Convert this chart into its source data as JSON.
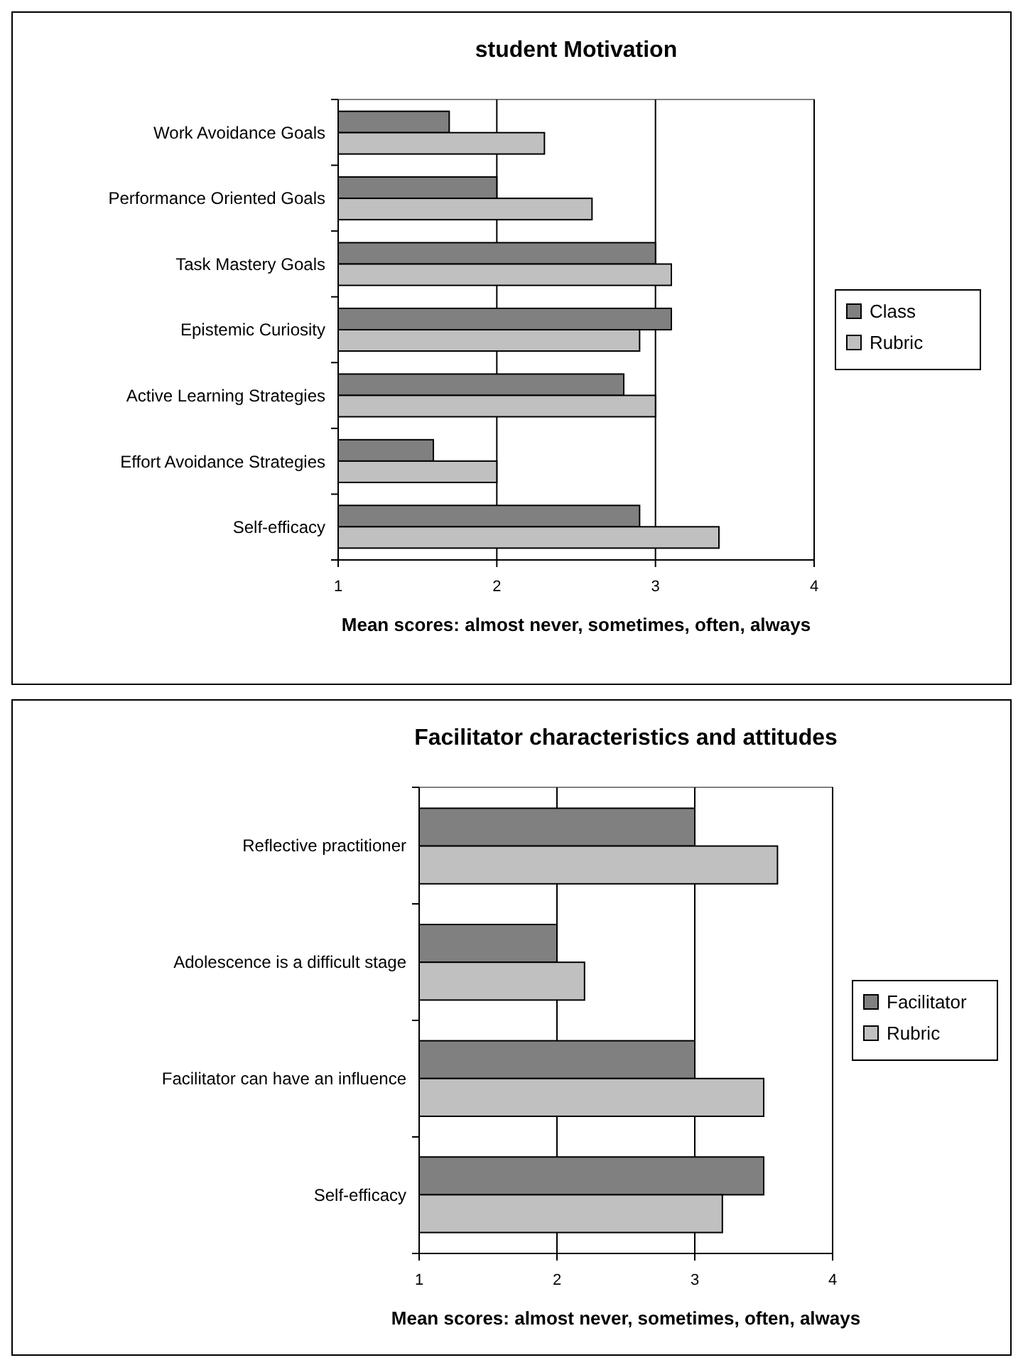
{
  "chart_data": [
    {
      "type": "bar",
      "orientation": "horizontal",
      "title": "student Motivation",
      "xlabel": "Mean scores: almost never, sometimes, often, always",
      "categories": [
        "Work Avoidance Goals",
        "Performance Oriented Goals",
        "Task Mastery Goals",
        "Epistemic Curiosity",
        "Active Learning Strategies",
        "Effort Avoidance Strategies",
        "Self-efficacy"
      ],
      "series": [
        {
          "name": "Class",
          "color": "#808080",
          "values": [
            1.7,
            2.0,
            3.0,
            3.1,
            2.8,
            1.6,
            2.9
          ]
        },
        {
          "name": "Rubric",
          "color": "#c0c0c0",
          "values": [
            2.3,
            2.6,
            3.1,
            2.9,
            3.0,
            2.0,
            3.4
          ]
        }
      ],
      "xlim": [
        1,
        4
      ],
      "xticks": [
        1,
        2,
        3,
        4
      ],
      "grid": "x",
      "legend": "right"
    },
    {
      "type": "bar",
      "orientation": "horizontal",
      "title": "Facilitator characteristics and attitudes",
      "xlabel": "Mean scores: almost never, sometimes, often, always",
      "categories": [
        "Reflective practitioner",
        "Adolescence is a difficult stage",
        "Facilitator can have an influence",
        "Self-efficacy"
      ],
      "series": [
        {
          "name": "Facilitator",
          "color": "#808080",
          "values": [
            3.0,
            2.0,
            3.0,
            3.5
          ]
        },
        {
          "name": "Rubric",
          "color": "#c0c0c0",
          "values": [
            3.6,
            2.2,
            3.5,
            3.2
          ]
        }
      ],
      "xlim": [
        1,
        4
      ],
      "xticks": [
        1,
        2,
        3,
        4
      ],
      "grid": "x",
      "legend": "right"
    }
  ]
}
